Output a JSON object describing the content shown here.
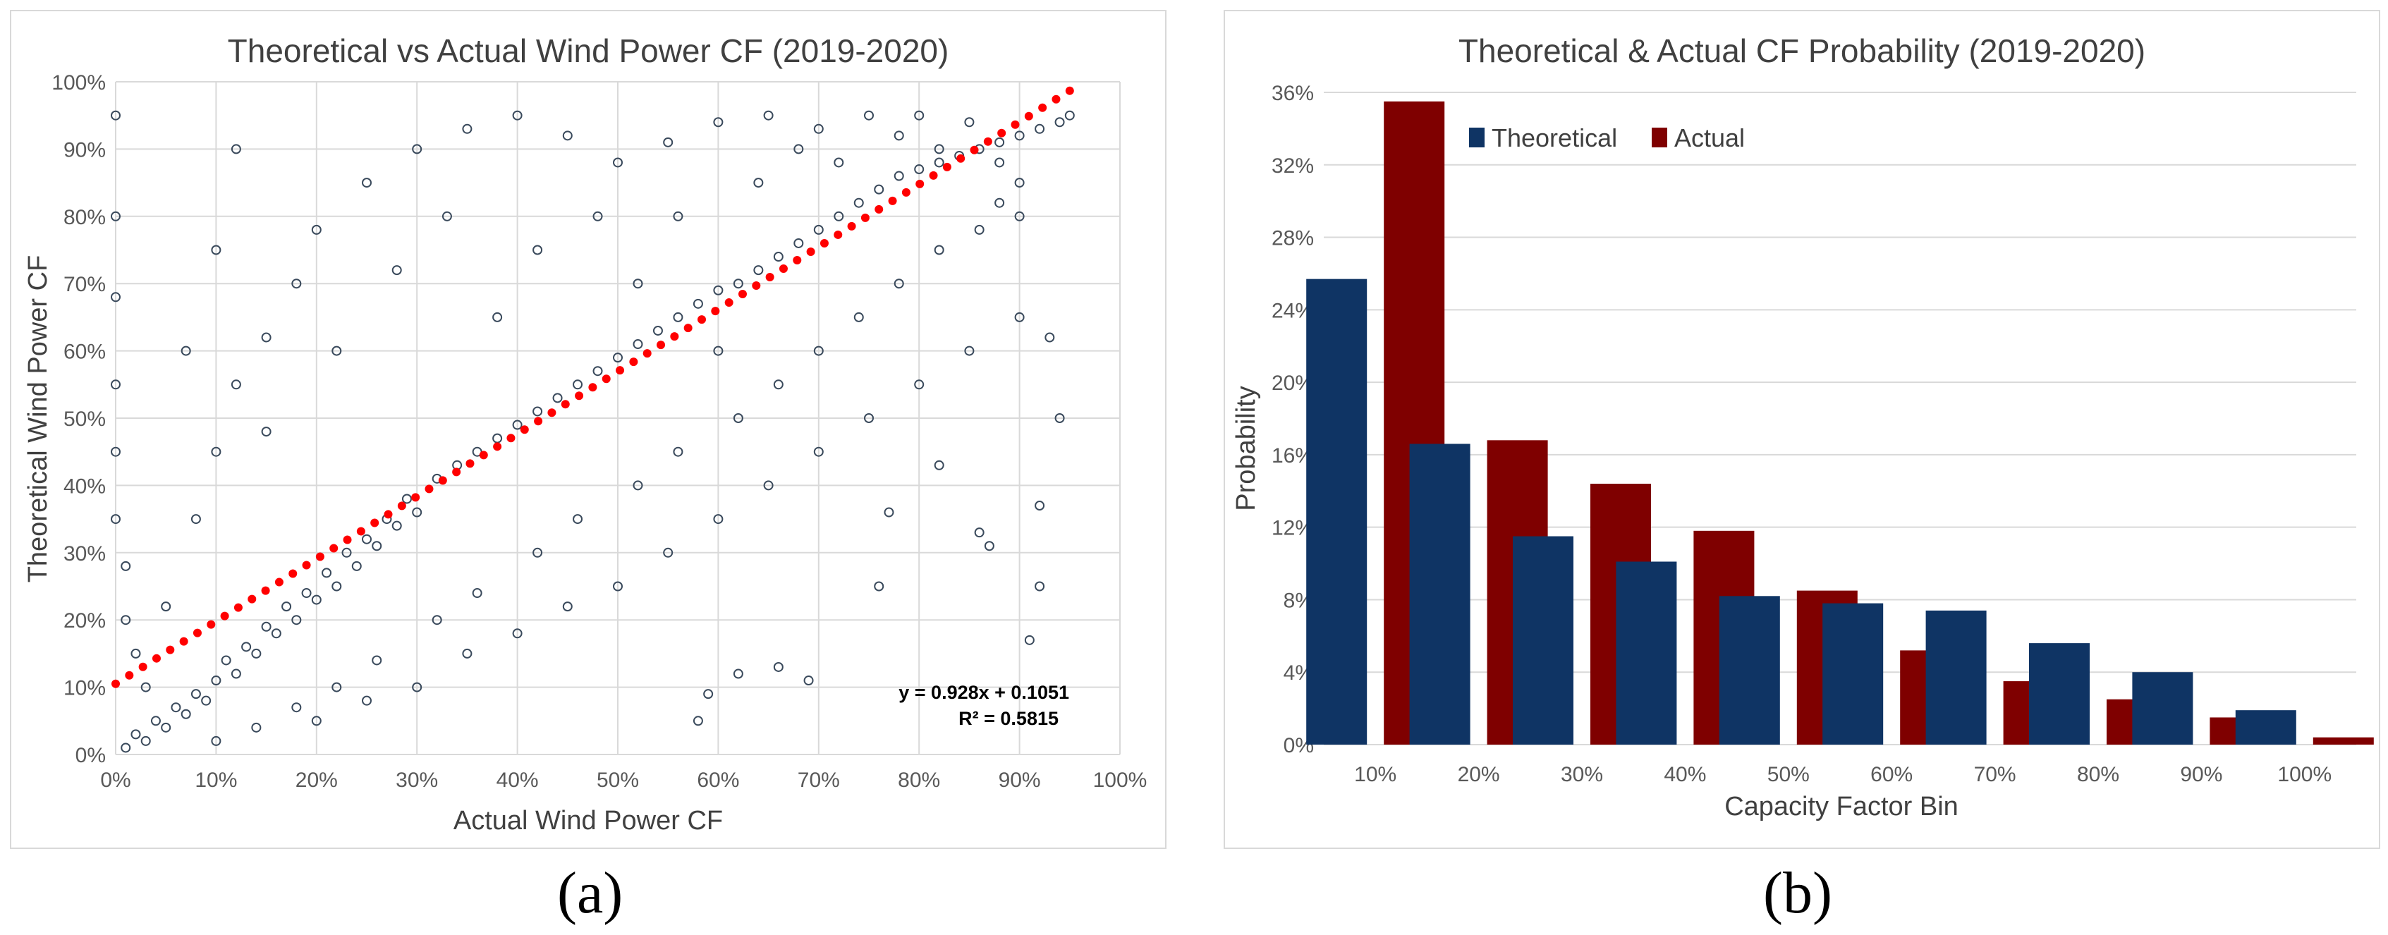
{
  "chart_data": [
    {
      "type": "scatter",
      "title": "Theoretical vs Actual Wind Power CF (2019-2020)",
      "xlabel": "Actual Wind Power CF",
      "ylabel": "Theoretical Wind Power CF",
      "xlim": [
        0,
        1
      ],
      "ylim": [
        0,
        1
      ],
      "x_ticks": [
        "0%",
        "10%",
        "20%",
        "30%",
        "40%",
        "50%",
        "60%",
        "70%",
        "80%",
        "90%",
        "100%"
      ],
      "y_ticks": [
        "0%",
        "10%",
        "20%",
        "30%",
        "40%",
        "50%",
        "60%",
        "70%",
        "80%",
        "90%",
        "100%"
      ],
      "grid": true,
      "series_color": "#3a4a5c",
      "trendline": {
        "slope": 0.928,
        "intercept": 0.1051,
        "x_range": [
          0,
          0.95
        ],
        "color": "#ff0000"
      },
      "equation": "y = 0.928x + 0.1051",
      "r_squared": "R² = 0.5815",
      "points": [
        [
          0.01,
          0.01
        ],
        [
          0.02,
          0.03
        ],
        [
          0.03,
          0.02
        ],
        [
          0.04,
          0.05
        ],
        [
          0.05,
          0.04
        ],
        [
          0.06,
          0.07
        ],
        [
          0.07,
          0.06
        ],
        [
          0.08,
          0.09
        ],
        [
          0.09,
          0.08
        ],
        [
          0.1,
          0.11
        ],
        [
          0.11,
          0.14
        ],
        [
          0.12,
          0.12
        ],
        [
          0.13,
          0.16
        ],
        [
          0.14,
          0.15
        ],
        [
          0.15,
          0.19
        ],
        [
          0.16,
          0.18
        ],
        [
          0.17,
          0.22
        ],
        [
          0.18,
          0.2
        ],
        [
          0.19,
          0.24
        ],
        [
          0.2,
          0.23
        ],
        [
          0.21,
          0.27
        ],
        [
          0.22,
          0.25
        ],
        [
          0.23,
          0.3
        ],
        [
          0.24,
          0.28
        ],
        [
          0.25,
          0.32
        ],
        [
          0.26,
          0.31
        ],
        [
          0.27,
          0.35
        ],
        [
          0.28,
          0.34
        ],
        [
          0.29,
          0.38
        ],
        [
          0.3,
          0.36
        ],
        [
          0.32,
          0.41
        ],
        [
          0.34,
          0.43
        ],
        [
          0.36,
          0.45
        ],
        [
          0.38,
          0.47
        ],
        [
          0.4,
          0.49
        ],
        [
          0.42,
          0.51
        ],
        [
          0.44,
          0.53
        ],
        [
          0.46,
          0.55
        ],
        [
          0.48,
          0.57
        ],
        [
          0.5,
          0.59
        ],
        [
          0.52,
          0.61
        ],
        [
          0.54,
          0.63
        ],
        [
          0.56,
          0.65
        ],
        [
          0.58,
          0.67
        ],
        [
          0.6,
          0.69
        ],
        [
          0.62,
          0.7
        ],
        [
          0.64,
          0.72
        ],
        [
          0.66,
          0.74
        ],
        [
          0.68,
          0.76
        ],
        [
          0.7,
          0.78
        ],
        [
          0.72,
          0.8
        ],
        [
          0.74,
          0.82
        ],
        [
          0.76,
          0.84
        ],
        [
          0.78,
          0.86
        ],
        [
          0.8,
          0.87
        ],
        [
          0.82,
          0.88
        ],
        [
          0.84,
          0.89
        ],
        [
          0.86,
          0.9
        ],
        [
          0.88,
          0.91
        ],
        [
          0.9,
          0.92
        ],
        [
          0.92,
          0.93
        ],
        [
          0.94,
          0.94
        ],
        [
          0.95,
          0.95
        ],
        [
          0.05,
          0.22
        ],
        [
          0.08,
          0.35
        ],
        [
          0.1,
          0.45
        ],
        [
          0.12,
          0.55
        ],
        [
          0.15,
          0.62
        ],
        [
          0.18,
          0.7
        ],
        [
          0.2,
          0.78
        ],
        [
          0.25,
          0.85
        ],
        [
          0.3,
          0.9
        ],
        [
          0.35,
          0.93
        ],
        [
          0.4,
          0.95
        ],
        [
          0.45,
          0.92
        ],
        [
          0.5,
          0.88
        ],
        [
          0.55,
          0.91
        ],
        [
          0.6,
          0.94
        ],
        [
          0.65,
          0.95
        ],
        [
          0.7,
          0.93
        ],
        [
          0.75,
          0.95
        ],
        [
          0.8,
          0.95
        ],
        [
          0.85,
          0.94
        ],
        [
          0.2,
          0.05
        ],
        [
          0.25,
          0.08
        ],
        [
          0.3,
          0.1
        ],
        [
          0.35,
          0.15
        ],
        [
          0.4,
          0.18
        ],
        [
          0.45,
          0.22
        ],
        [
          0.5,
          0.25
        ],
        [
          0.55,
          0.3
        ],
        [
          0.6,
          0.35
        ],
        [
          0.65,
          0.4
        ],
        [
          0.7,
          0.45
        ],
        [
          0.75,
          0.5
        ],
        [
          0.8,
          0.55
        ],
        [
          0.85,
          0.6
        ],
        [
          0.9,
          0.65
        ],
        [
          0.93,
          0.62
        ],
        [
          0.92,
          0.37
        ],
        [
          0.94,
          0.5
        ],
        [
          0.86,
          0.33
        ],
        [
          0.87,
          0.31
        ],
        [
          0.58,
          0.05
        ],
        [
          0.59,
          0.09
        ],
        [
          0.62,
          0.12
        ],
        [
          0.66,
          0.13
        ],
        [
          0.69,
          0.11
        ],
        [
          0.92,
          0.25
        ],
        [
          0.91,
          0.17
        ],
        [
          0.76,
          0.25
        ],
        [
          0.77,
          0.36
        ],
        [
          0.82,
          0.43
        ],
        [
          0.0,
          0.95
        ],
        [
          0.0,
          0.8
        ],
        [
          0.0,
          0.68
        ],
        [
          0.0,
          0.55
        ],
        [
          0.0,
          0.45
        ],
        [
          0.0,
          0.35
        ],
        [
          0.01,
          0.28
        ],
        [
          0.01,
          0.2
        ],
        [
          0.02,
          0.15
        ],
        [
          0.03,
          0.1
        ],
        [
          0.07,
          0.6
        ],
        [
          0.1,
          0.75
        ],
        [
          0.12,
          0.9
        ],
        [
          0.15,
          0.48
        ],
        [
          0.22,
          0.6
        ],
        [
          0.28,
          0.72
        ],
        [
          0.33,
          0.8
        ],
        [
          0.38,
          0.65
        ],
        [
          0.42,
          0.75
        ],
        [
          0.48,
          0.8
        ],
        [
          0.52,
          0.7
        ],
        [
          0.56,
          0.8
        ],
        [
          0.6,
          0.6
        ],
        [
          0.64,
          0.85
        ],
        [
          0.68,
          0.9
        ],
        [
          0.72,
          0.88
        ],
        [
          0.78,
          0.92
        ],
        [
          0.82,
          0.9
        ],
        [
          0.88,
          0.88
        ],
        [
          0.9,
          0.85
        ],
        [
          0.1,
          0.02
        ],
        [
          0.14,
          0.04
        ],
        [
          0.18,
          0.07
        ],
        [
          0.22,
          0.1
        ],
        [
          0.26,
          0.14
        ],
        [
          0.32,
          0.2
        ],
        [
          0.36,
          0.24
        ],
        [
          0.42,
          0.3
        ],
        [
          0.46,
          0.35
        ],
        [
          0.52,
          0.4
        ],
        [
          0.56,
          0.45
        ],
        [
          0.62,
          0.5
        ],
        [
          0.66,
          0.55
        ],
        [
          0.7,
          0.6
        ],
        [
          0.74,
          0.65
        ],
        [
          0.78,
          0.7
        ],
        [
          0.82,
          0.75
        ],
        [
          0.86,
          0.78
        ],
        [
          0.88,
          0.82
        ],
        [
          0.9,
          0.8
        ]
      ]
    },
    {
      "type": "bar",
      "title": "Theoretical & Actual CF Probability (2019-2020)",
      "xlabel": "Capacity Factor Bin",
      "ylabel": "Probability",
      "categories": [
        "10%",
        "20%",
        "30%",
        "40%",
        "50%",
        "60%",
        "70%",
        "80%",
        "90%",
        "100%"
      ],
      "ylim": [
        0,
        0.36
      ],
      "y_ticks": [
        "0%",
        "4%",
        "8%",
        "12%",
        "16%",
        "20%",
        "24%",
        "28%",
        "32%",
        "36%"
      ],
      "grid": true,
      "legend_position": "top-left",
      "series": [
        {
          "name": "Theoretical",
          "color": "#0f3464",
          "values": [
            0.257,
            0.166,
            0.115,
            0.101,
            0.082,
            0.078,
            0.074,
            0.056,
            0.04,
            0.019
          ]
        },
        {
          "name": "Actual",
          "color": "#7f0000",
          "values": [
            0.355,
            0.168,
            0.144,
            0.118,
            0.085,
            0.052,
            0.035,
            0.025,
            0.015,
            0.004
          ]
        }
      ]
    }
  ],
  "captions": {
    "a": "(a)",
    "b": "(b)"
  }
}
